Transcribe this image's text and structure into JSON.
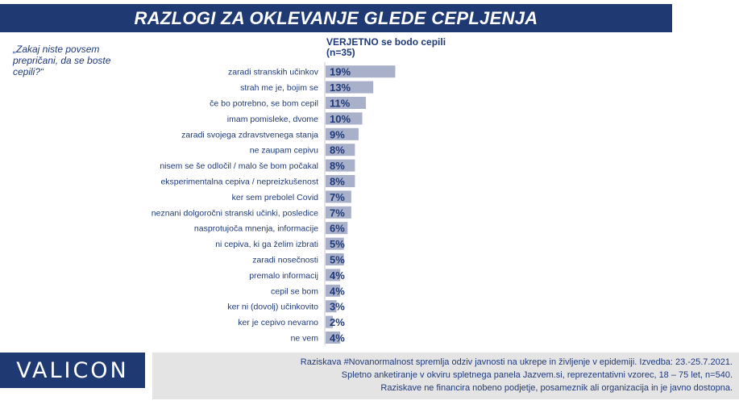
{
  "header": {
    "title": "RAZLOGI ZA OKLEVANJE GLEDE CEPLJENJA"
  },
  "question": "„Zakaj niste povsem prepričani, da se boste cepili?“",
  "series_header": {
    "line1": "VERJETNO  se bodo cepili",
    "line2": "(n=35)"
  },
  "colors": {
    "title_bg": "#1f3a73",
    "bar": "#a9b0c9",
    "text": "#1f3a7a",
    "footer_bg": "#e4e4e4"
  },
  "chart_data": {
    "type": "bar",
    "orientation": "horizontal",
    "categories": [
      "zaradi stranskih učinkov",
      "strah me je, bojim se",
      "če bo potrebno, se bom cepil",
      "imam pomisleke, dvome",
      "zaradi svojega zdravstvenega stanja",
      "ne zaupam cepivu",
      "nisem se še odločil / malo še bom počakal",
      "eksperimentalna cepiva / nepreizkušenost",
      "ker sem prebolel Covid",
      "neznani dolgoročni stranski učinki, posledice",
      "nasprotujoča mnenja, informacije",
      "ni cepiva, ki ga želim izbrati",
      "zaradi nosečnosti",
      "premalo informacij",
      "cepil se bom",
      "ker ni (dovolj) učinkovito",
      "ker je cepivo nevarno",
      "ne vem"
    ],
    "series": [
      {
        "name": "VERJETNO  se bodo cepili",
        "values": [
          19,
          13,
          11,
          10,
          9,
          8,
          8,
          8,
          7,
          7,
          6,
          5,
          5,
          4,
          4,
          3,
          2,
          4
        ]
      }
    ],
    "value_suffix": "%",
    "legend": "none",
    "grid": false
  },
  "footer": {
    "logo": "VALICON",
    "note_line1": "Raziskava #Novanormalnost spremlja odziv javnosti na ukrepe in življenje v epidemiji. Izvedba: 23.-25.7.2021.",
    "note_line2": "Spletno anketiranje v okviru spletnega panela Jazvem.si, reprezentativni vzorec, 18 – 75 let, n=540.",
    "note_line3": "Raziskave ne financira nobeno podjetje, posameznik ali organizacija in je javno dostopna."
  }
}
